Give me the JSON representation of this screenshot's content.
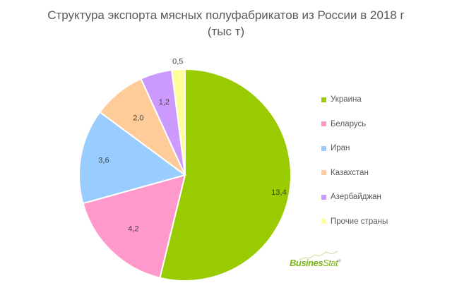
{
  "title": {
    "line1": "Структура экспорта мясных полуфабрикатов из России в 2018 г",
    "line2": "(тыс т)"
  },
  "chart_data": {
    "type": "pie",
    "title": "Структура экспорта мясных полуфабрикатов из России в 2018 г (тыс т)",
    "categories": [
      "Украина",
      "Беларусь",
      "Иран",
      "Казахстан",
      "Азербайджан",
      "Прочие страны"
    ],
    "values": [
      13.4,
      4.2,
      3.6,
      2.0,
      1.2,
      0.5
    ],
    "value_labels": [
      "13,4",
      "4,2",
      "3,6",
      "2,0",
      "1,2",
      "0,5"
    ],
    "colors": [
      "#99cc00",
      "#ff99cc",
      "#99ccff",
      "#ffcc99",
      "#cc99ff",
      "#ffff99"
    ],
    "legend_position": "right",
    "start_angle_deg": 0,
    "direction": "clockwise"
  },
  "legend": {
    "items": [
      {
        "label": "Украина",
        "color": "#99cc00"
      },
      {
        "label": "Беларусь",
        "color": "#ff99cc"
      },
      {
        "label": "Иран",
        "color": "#99ccff"
      },
      {
        "label": "Казахстан",
        "color": "#ffcc99"
      },
      {
        "label": "Азербайджан",
        "color": "#cc99ff"
      },
      {
        "label": "Прочие страны",
        "color": "#ffff99"
      }
    ]
  },
  "logo": {
    "bold": "Busines",
    "light": "Stat",
    "mark": "®"
  }
}
